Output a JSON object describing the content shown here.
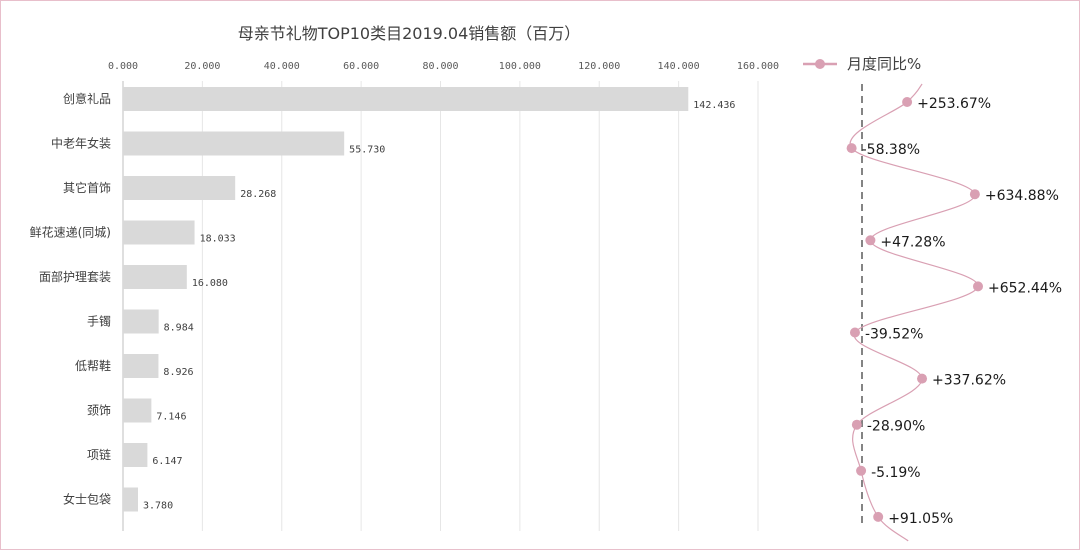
{
  "chart_data": {
    "type": "bar",
    "orientation": "horizontal",
    "title": "母亲节礼物TOP10类目2019.04销售额（百万）",
    "categories": [
      "创意礼品",
      "中老年女装",
      "其它首饰",
      "鲜花速递(同城)",
      "面部护理套装",
      "手镯",
      "低帮鞋",
      "颈饰",
      "项链",
      "女士包袋"
    ],
    "values": [
      142.436,
      55.73,
      28.268,
      18.033,
      16.08,
      8.984,
      8.926,
      7.146,
      6.147,
      3.78
    ],
    "value_labels": [
      "142.436",
      "55.730",
      "28.268",
      "18.033",
      "16.080",
      "8.984",
      "8.926",
      "7.146",
      "6.147",
      "3.780"
    ],
    "x_ticks": [
      "0.000",
      "20.000",
      "40.000",
      "60.000",
      "80.000",
      "100.000",
      "120.000",
      "140.000",
      "160.000"
    ],
    "xlim": [
      0,
      160
    ],
    "grid": true,
    "bar_color": "#d9d9d9",
    "secondary_series": {
      "name": "月度同比%",
      "type": "line",
      "values": [
        253.67,
        -58.38,
        634.88,
        47.28,
        652.44,
        -39.52,
        337.62,
        -28.9,
        -5.19,
        91.05
      ],
      "labels": [
        "+253.67%",
        "-58.38%",
        "+634.88%",
        "+47.28%",
        "+652.44%",
        "-39.52%",
        "+337.62%",
        "-28.90%",
        "-5.19%",
        "+91.05%"
      ],
      "color": "#d9a0b3",
      "reference_line": 0
    },
    "legend_position": "top-right"
  }
}
